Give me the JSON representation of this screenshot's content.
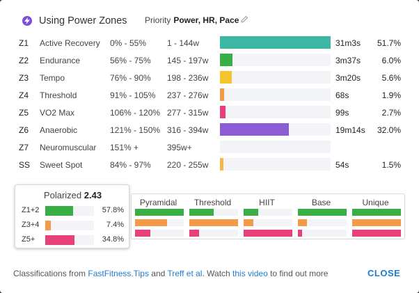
{
  "header": {
    "title": "Using Power Zones",
    "icon": "lightning-bolt-icon",
    "priority_label": "Priority",
    "priority_value": "Power, HR, Pace"
  },
  "zones": [
    {
      "code": "Z1",
      "name": "Active Recovery",
      "pct": "0% - 55%",
      "watts": "1 - 144w",
      "time": "31m3s",
      "share": "51.7%",
      "fill": 1.0,
      "color": "#3db6a3"
    },
    {
      "code": "Z2",
      "name": "Endurance",
      "pct": "56% - 75%",
      "watts": "145 - 197w",
      "time": "3m37s",
      "share": "6.0%",
      "fill": 0.115,
      "color": "#3aae46"
    },
    {
      "code": "Z3",
      "name": "Tempo",
      "pct": "76% - 90%",
      "watts": "198 - 236w",
      "time": "3m20s",
      "share": "5.6%",
      "fill": 0.107,
      "color": "#f5c42c"
    },
    {
      "code": "Z4",
      "name": "Threshold",
      "pct": "91% - 105%",
      "watts": "237 - 276w",
      "time": "68s",
      "share": "1.9%",
      "fill": 0.036,
      "color": "#f39a48"
    },
    {
      "code": "Z5",
      "name": "VO2 Max",
      "pct": "106% - 120%",
      "watts": "277 - 315w",
      "time": "99s",
      "share": "2.7%",
      "fill": 0.052,
      "color": "#e8417a"
    },
    {
      "code": "Z6",
      "name": "Anaerobic",
      "pct": "121% - 150%",
      "watts": "316 - 394w",
      "time": "19m14s",
      "share": "32.0%",
      "fill": 0.62,
      "color": "#8b5cd6"
    },
    {
      "code": "Z7",
      "name": "Neuromuscular",
      "pct": "151% +",
      "watts": "395w+",
      "time": "",
      "share": "",
      "fill": 0.0,
      "color": "#8b5cd6"
    },
    {
      "code": "SS",
      "name": "Sweet Spot",
      "pct": "84% - 97%",
      "watts": "220 - 255w",
      "time": "54s",
      "share": "1.5%",
      "fill": 0.03,
      "color": "#f5b842"
    }
  ],
  "polarized": {
    "label": "Polarized",
    "value": "2.43",
    "rows": [
      {
        "label": "Z1+2",
        "value": "57.8%",
        "fill": 0.578,
        "color": "#3aae46"
      },
      {
        "label": "Z3+4",
        "value": "7.4%",
        "fill": 0.12,
        "color": "#f39a48"
      },
      {
        "label": "Z5+",
        "value": "34.8%",
        "fill": 0.6,
        "color": "#e8417a"
      }
    ]
  },
  "classifications": [
    {
      "label": "Pyramidal",
      "bars": [
        {
          "fill": 1.0,
          "color": "#3aae46"
        },
        {
          "fill": 0.65,
          "color": "#f39a48"
        },
        {
          "fill": 0.32,
          "color": "#e8417a"
        }
      ]
    },
    {
      "label": "Threshold",
      "bars": [
        {
          "fill": 0.5,
          "color": "#3aae46"
        },
        {
          "fill": 1.0,
          "color": "#f39a48"
        },
        {
          "fill": 0.2,
          "color": "#e8417a"
        }
      ]
    },
    {
      "label": "HIIT",
      "bars": [
        {
          "fill": 0.3,
          "color": "#3aae46"
        },
        {
          "fill": 0.2,
          "color": "#f39a48"
        },
        {
          "fill": 1.0,
          "color": "#e8417a"
        }
      ]
    },
    {
      "label": "Base",
      "bars": [
        {
          "fill": 1.0,
          "color": "#3aae46"
        },
        {
          "fill": 0.18,
          "color": "#f39a48"
        },
        {
          "fill": 0.08,
          "color": "#e8417a"
        }
      ]
    },
    {
      "label": "Unique",
      "bars": [
        {
          "fill": 1.0,
          "color": "#3aae46"
        },
        {
          "fill": 1.0,
          "color": "#f39a48"
        },
        {
          "fill": 1.0,
          "color": "#e8417a"
        }
      ]
    }
  ],
  "footer": {
    "prefix": "Classifications from ",
    "link1": "FastFitness.Tips",
    "and": " and ",
    "link2": "Treff et al",
    "mid": ". Watch ",
    "link3": "this video",
    "suffix": " to find out more",
    "close_label": "CLOSE"
  },
  "colors": {
    "accent": "#1e7bd0",
    "track": "#f2f4f8"
  }
}
